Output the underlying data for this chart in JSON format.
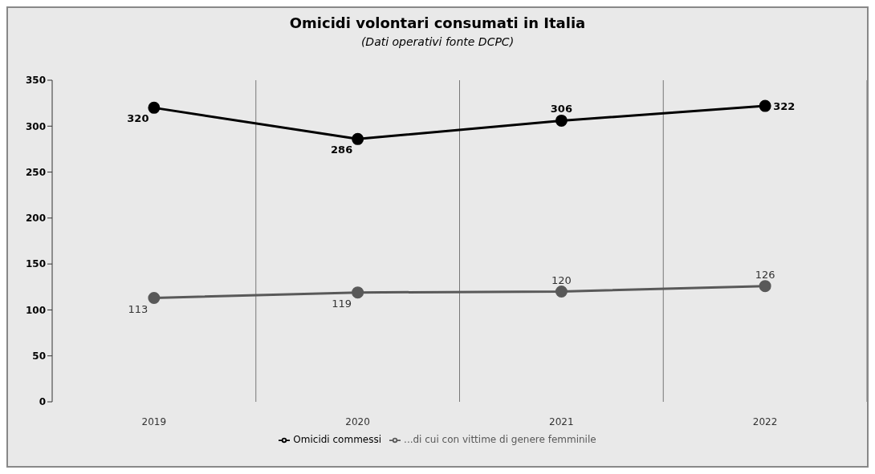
{
  "chart_data": {
    "type": "line",
    "title": "Omicidi volontari consumati in Italia",
    "subtitle": "(Dati operativi fonte DCPC)",
    "categories": [
      "2019",
      "2020",
      "2021",
      "2022"
    ],
    "series": [
      {
        "name": "Omicidi commessi",
        "color": "#000000",
        "values": [
          320,
          286,
          306,
          322
        ]
      },
      {
        "name": "...di cui con vittime di genere femminile",
        "color": "#595959",
        "values": [
          113,
          119,
          120,
          126
        ]
      }
    ],
    "ylim": [
      0,
      350
    ],
    "yticks": [
      0,
      50,
      100,
      150,
      200,
      250,
      300,
      350
    ],
    "grid": "x",
    "legend": "bottom",
    "marker": "circle",
    "line_style": "solid",
    "data_labels": true
  }
}
